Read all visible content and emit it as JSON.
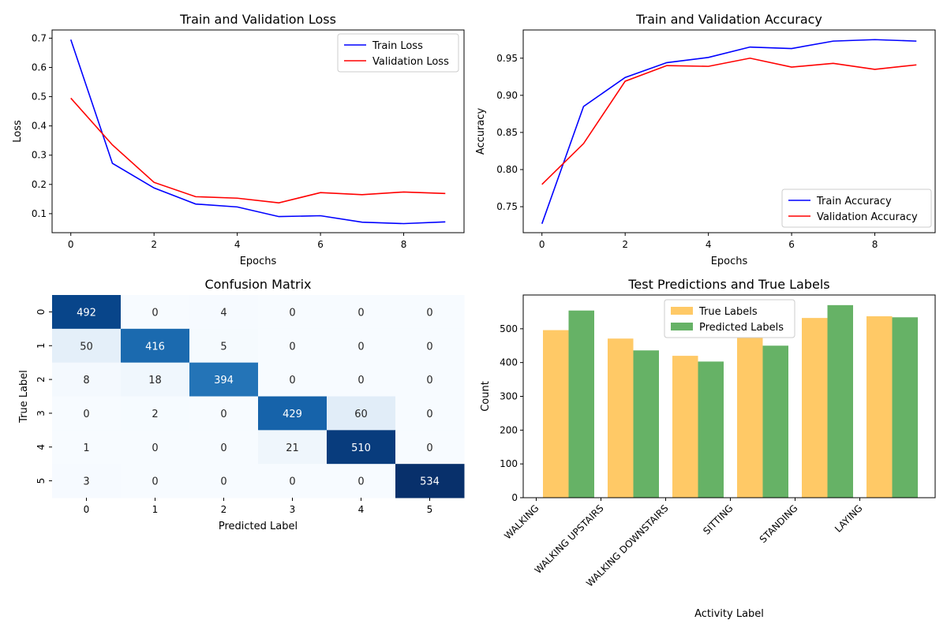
{
  "colors": {
    "train": "#0000ff",
    "validation": "#ff0000",
    "true_bar": "#ffc966",
    "pred_bar": "#66b266",
    "cmap": [
      "#f7fbff",
      "#deebf7",
      "#c6dbef",
      "#9ecae1",
      "#6baed6",
      "#4292c6",
      "#2171b5",
      "#08519c",
      "#08306b"
    ]
  },
  "chart_data": [
    {
      "type": "line",
      "title": "Train and Validation Loss",
      "xlabel": "Epochs",
      "ylabel": "Loss",
      "x": [
        0,
        1,
        2,
        3,
        4,
        5,
        6,
        7,
        8,
        9
      ],
      "series": [
        {
          "name": "Train Loss",
          "values": [
            0.695,
            0.272,
            0.188,
            0.133,
            0.123,
            0.09,
            0.093,
            0.071,
            0.066,
            0.072
          ]
        },
        {
          "name": "Validation Loss",
          "values": [
            0.495,
            0.335,
            0.207,
            0.158,
            0.153,
            0.137,
            0.172,
            0.165,
            0.174,
            0.169
          ]
        }
      ],
      "xlim": [
        -0.45,
        9.45
      ],
      "ylim": [
        0.035,
        0.728
      ],
      "xticks": [
        0,
        2,
        4,
        6,
        8
      ],
      "yticks": [
        0.1,
        0.2,
        0.3,
        0.4,
        0.5,
        0.6,
        0.7
      ],
      "legend": "top-right",
      "grid": false
    },
    {
      "type": "line",
      "title": "Train and Validation Accuracy",
      "xlabel": "Epochs",
      "ylabel": "Accuracy",
      "x": [
        0,
        1,
        2,
        3,
        4,
        5,
        6,
        7,
        8,
        9
      ],
      "series": [
        {
          "name": "Train Accuracy",
          "values": [
            0.727,
            0.885,
            0.924,
            0.944,
            0.951,
            0.965,
            0.963,
            0.973,
            0.975,
            0.973
          ]
        },
        {
          "name": "Validation Accuracy",
          "values": [
            0.78,
            0.835,
            0.919,
            0.94,
            0.939,
            0.95,
            0.938,
            0.943,
            0.935,
            0.941
          ]
        }
      ],
      "xlim": [
        -0.45,
        9.45
      ],
      "ylim": [
        0.715,
        0.988
      ],
      "xticks": [
        0,
        2,
        4,
        6,
        8
      ],
      "yticks": [
        0.75,
        0.8,
        0.85,
        0.9,
        0.95
      ],
      "legend": "bottom-right",
      "grid": false
    },
    {
      "type": "heatmap",
      "title": "Confusion Matrix",
      "xlabel": "Predicted Label",
      "ylabel": "True Label",
      "x_categories": [
        "0",
        "1",
        "2",
        "3",
        "4",
        "5"
      ],
      "y_categories": [
        "0",
        "1",
        "2",
        "3",
        "4",
        "5"
      ],
      "values": [
        [
          492,
          0,
          4,
          0,
          0,
          0
        ],
        [
          50,
          416,
          5,
          0,
          0,
          0
        ],
        [
          8,
          18,
          394,
          0,
          0,
          0
        ],
        [
          0,
          2,
          0,
          429,
          60,
          0
        ],
        [
          1,
          0,
          0,
          21,
          510,
          0
        ],
        [
          3,
          0,
          0,
          0,
          0,
          534
        ]
      ],
      "vmin": 0,
      "vmax": 534
    },
    {
      "type": "bar",
      "title": "Test Predictions and True Labels",
      "xlabel": "Activity Label",
      "ylabel": "Count",
      "categories": [
        "WALKING",
        "WALKING UPSTAIRS",
        "WALKING DOWNSTAIRS",
        "SITTING",
        "STANDING",
        "LAYING"
      ],
      "series": [
        {
          "name": "True Labels",
          "values": [
            496,
            471,
            420,
            491,
            532,
            537
          ]
        },
        {
          "name": "Predicted Labels",
          "values": [
            554,
            436,
            403,
            450,
            570,
            534
          ]
        }
      ],
      "ylim": [
        0,
        600
      ],
      "yticks": [
        0,
        100,
        200,
        300,
        400,
        500
      ],
      "legend": "top-center",
      "grid": false
    }
  ]
}
